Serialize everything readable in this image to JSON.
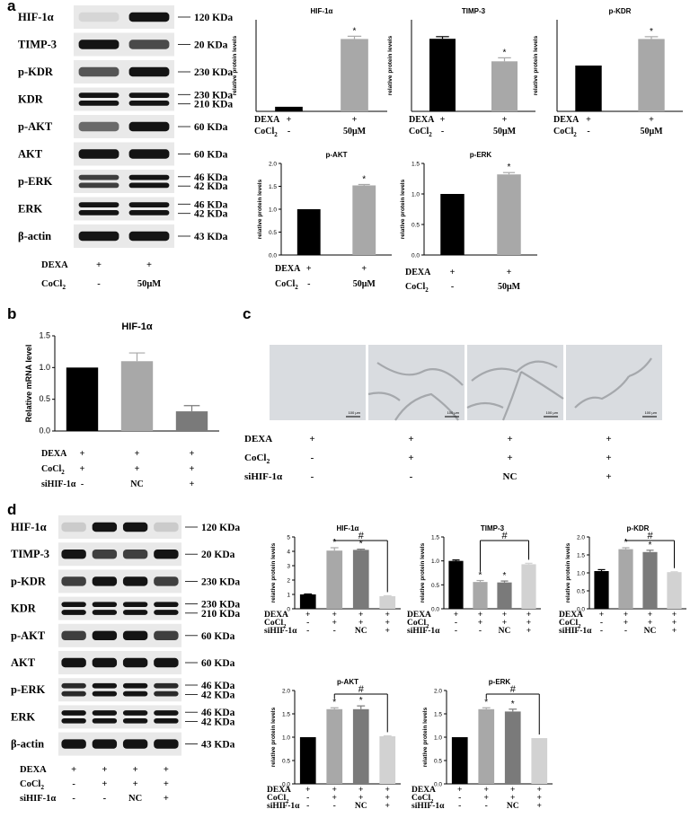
{
  "panel_labels": {
    "a": "a",
    "b": "b",
    "c": "c",
    "d": "d"
  },
  "colors": {
    "black": "#000000",
    "gray": "#a8a8a8",
    "dark_gray": "#7a7a7a",
    "light_gray": "#d2d2d2",
    "blot_bg": "#e9e9e9",
    "micro_bg": "#d9dce0"
  },
  "blot_a": {
    "rows": [
      {
        "label": "HIF-1α",
        "weights": [
          120
        ],
        "kda": [
          "120 KDa"
        ],
        "intensity": [
          0.1,
          1.0
        ]
      },
      {
        "label": "TIMP-3",
        "kda": [
          "20 KDa"
        ],
        "intensity": [
          1.0,
          0.75
        ]
      },
      {
        "label": "p-KDR",
        "kda": [
          "230 KDa"
        ],
        "intensity": [
          0.7,
          1.0
        ]
      },
      {
        "label": "KDR",
        "kda": [
          "230 KDa",
          "210 KDa"
        ],
        "intensity": [
          1.0,
          1.0
        ],
        "double": true
      },
      {
        "label": "p-AKT",
        "kda": [
          "60 KDa"
        ],
        "intensity": [
          0.6,
          1.0
        ]
      },
      {
        "label": "AKT",
        "kda": [
          "60 KDa"
        ],
        "intensity": [
          1.0,
          1.0
        ]
      },
      {
        "label": "p-ERK",
        "kda": [
          "46 KDa",
          "42 KDa"
        ],
        "intensity": [
          0.8,
          1.0
        ],
        "double": true
      },
      {
        "label": "ERK",
        "kda": [
          "46 KDa",
          "42 KDa"
        ],
        "intensity": [
          1.0,
          1.0
        ],
        "double": true
      },
      {
        "label": "β-actin",
        "kda": [
          "43 KDa"
        ],
        "intensity": [
          1.0,
          1.0
        ]
      }
    ],
    "conditions": [
      {
        "label": "DEXA",
        "values": [
          "+",
          "+"
        ]
      },
      {
        "label": "CoCl2",
        "values": [
          "-",
          "50μM"
        ]
      }
    ]
  },
  "blot_d": {
    "rows": [
      {
        "label": "HIF-1α",
        "kda": [
          "120 KDa"
        ],
        "intensity": [
          0.15,
          1.0,
          1.0,
          0.15
        ]
      },
      {
        "label": "TIMP-3",
        "kda": [
          "20 KDa"
        ],
        "intensity": [
          1.0,
          0.8,
          0.8,
          1.0
        ]
      },
      {
        "label": "p-KDR",
        "kda": [
          "230 KDa"
        ],
        "intensity": [
          0.8,
          1.0,
          1.0,
          0.8
        ]
      },
      {
        "label": "KDR",
        "kda": [
          "230 KDa",
          "210 KDa"
        ],
        "intensity": [
          1.0,
          1.0,
          1.0,
          1.0
        ],
        "double": true
      },
      {
        "label": "p-AKT",
        "kda": [
          "60 KDa"
        ],
        "intensity": [
          0.8,
          1.0,
          1.0,
          0.8
        ]
      },
      {
        "label": "AKT",
        "kda": [
          "60 KDa"
        ],
        "intensity": [
          1.0,
          1.0,
          1.0,
          1.0
        ]
      },
      {
        "label": "p-ERK",
        "kda": [
          "46 KDa",
          "42 KDa"
        ],
        "intensity": [
          0.9,
          1.0,
          1.0,
          0.9
        ],
        "double": true
      },
      {
        "label": "ERK",
        "kda": [
          "46 KDa",
          "42 KDa"
        ],
        "intensity": [
          1.0,
          1.0,
          1.0,
          1.0
        ],
        "double": true
      },
      {
        "label": "β-actin",
        "kda": [
          "43 KDa"
        ],
        "intensity": [
          1.0,
          1.0,
          1.0,
          1.0
        ]
      }
    ],
    "conditions": [
      {
        "label": "DEXA",
        "values": [
          "+",
          "+",
          "+",
          "+"
        ]
      },
      {
        "label": "CoCl2",
        "values": [
          "-",
          "+",
          "+",
          "+"
        ]
      },
      {
        "label": "siHIF-1α",
        "values": [
          "-",
          "-",
          "NC",
          "+"
        ]
      }
    ]
  },
  "micrographs_c": {
    "scale_bars": [
      "100 μm",
      "100 μm",
      "100 μm",
      "100 μm"
    ],
    "conditions": [
      {
        "label": "DEXA",
        "values": [
          "+",
          "+",
          "+",
          "+"
        ]
      },
      {
        "label": "CoCl2",
        "values": [
          "-",
          "+",
          "+",
          "+"
        ]
      },
      {
        "label": "siHIF-1α",
        "values": [
          "-",
          "-",
          "NC",
          "+"
        ]
      }
    ]
  },
  "chart_data": [
    {
      "id": "a-hif",
      "type": "bar",
      "title": "HIF-1α",
      "ylabel": "relative protein levels",
      "categories": [
        "1",
        "2"
      ],
      "values": [
        1.0,
        15.8
      ],
      "errors": [
        0,
        0.6
      ],
      "ylim": [
        0,
        20
      ],
      "marks": [
        "",
        "*"
      ],
      "bar_colors": [
        "#000000",
        "#a8a8a8"
      ],
      "conditions": [
        {
          "label": "DEXA",
          "values": [
            "+",
            "+"
          ]
        },
        {
          "label": "CoCl2",
          "values": [
            "-",
            "50μM"
          ]
        }
      ]
    },
    {
      "id": "a-timp",
      "type": "bar",
      "title": "TIMP-3",
      "ylabel": "relative protein levels",
      "categories": [
        "1",
        "2"
      ],
      "values": [
        1.03,
        0.71
      ],
      "errors": [
        0.03,
        0.05
      ],
      "ylim": [
        0,
        1.3
      ],
      "marks": [
        "",
        "*"
      ],
      "bar_colors": [
        "#000000",
        "#a8a8a8"
      ],
      "conditions": [
        {
          "label": "DEXA",
          "values": [
            "+",
            "+"
          ]
        },
        {
          "label": "CoCl2",
          "values": [
            "-",
            "50μM"
          ]
        }
      ]
    },
    {
      "id": "a-pkdr",
      "type": "bar",
      "title": "p-KDR",
      "ylabel": "relative protein levels",
      "categories": [
        "1",
        "2"
      ],
      "values": [
        1.0,
        1.58
      ],
      "errors": [
        0,
        0.05
      ],
      "ylim": [
        0,
        2.0
      ],
      "marks": [
        "",
        "*"
      ],
      "bar_colors": [
        "#000000",
        "#a8a8a8"
      ],
      "conditions": [
        {
          "label": "DEXA",
          "values": [
            "+",
            "+"
          ]
        },
        {
          "label": "CoCl2",
          "values": [
            "-",
            "50μM"
          ]
        }
      ]
    },
    {
      "id": "a-pakt",
      "type": "bar",
      "title": "p-AKT",
      "ylabel": "relative protein levels",
      "categories": [
        "1",
        "2"
      ],
      "values": [
        1.0,
        1.52
      ],
      "errors": [
        0,
        0.02
      ],
      "ylim": [
        0,
        2.0
      ],
      "yticks": [
        0.0,
        0.5,
        1.0,
        1.5,
        2.0
      ],
      "marks": [
        "",
        "*"
      ],
      "bar_colors": [
        "#000000",
        "#a8a8a8"
      ],
      "conditions": [
        {
          "label": "DEXA",
          "values": [
            "+",
            "+"
          ]
        },
        {
          "label": "CoCl2",
          "values": [
            "-",
            "50μM"
          ]
        }
      ]
    },
    {
      "id": "a-perk",
      "type": "bar",
      "title": "p-ERK",
      "ylabel": "relative protein levels",
      "categories": [
        "1",
        "2"
      ],
      "values": [
        1.0,
        1.32
      ],
      "errors": [
        0,
        0.03
      ],
      "ylim": [
        0,
        1.5
      ],
      "yticks": [
        0.0,
        0.5,
        1.0,
        1.5
      ],
      "marks": [
        "",
        "*"
      ],
      "bar_colors": [
        "#000000",
        "#a8a8a8"
      ],
      "conditions": [
        {
          "label": "DEXA",
          "values": [
            "+",
            "+"
          ]
        },
        {
          "label": "CoCl2",
          "values": [
            "-",
            "50μM"
          ]
        }
      ]
    },
    {
      "id": "b-hif",
      "type": "bar",
      "title": "HIF-1α",
      "ylabel": "Relative mRNA level",
      "categories": [
        "1",
        "2",
        "3"
      ],
      "values": [
        1.0,
        1.1,
        0.31
      ],
      "errors": [
        0,
        0.13,
        0.09
      ],
      "ylim": [
        0,
        1.5
      ],
      "yticks": [
        0.0,
        0.5,
        1.0,
        1.5
      ],
      "marks": [
        "",
        "",
        ""
      ],
      "bar_colors": [
        "#000000",
        "#a8a8a8",
        "#7a7a7a"
      ],
      "conditions": [
        {
          "label": "DEXA",
          "values": [
            "+",
            "+",
            "+"
          ]
        },
        {
          "label": "CoCl2",
          "values": [
            "+",
            "+",
            "+"
          ]
        },
        {
          "label": "siHIF-1α",
          "values": [
            "-",
            "NC",
            "+"
          ]
        }
      ]
    },
    {
      "id": "d-hif",
      "type": "bar",
      "title": "HIF-1α",
      "ylabel": "relative protein levels",
      "categories": [
        "1",
        "2",
        "3",
        "4"
      ],
      "values": [
        1.0,
        4.05,
        4.1,
        0.88
      ],
      "errors": [
        0.03,
        0.2,
        0.05,
        0.03
      ],
      "ylim": [
        0,
        5
      ],
      "yticks": [
        0,
        1,
        2,
        3,
        4,
        5
      ],
      "marks": [
        "",
        "*",
        "*",
        ""
      ],
      "hash": "#",
      "bar_colors": [
        "#000000",
        "#a8a8a8",
        "#7a7a7a",
        "#d2d2d2"
      ],
      "conditions": [
        {
          "label": "DEXA",
          "values": [
            "+",
            "+",
            "+",
            "+"
          ]
        },
        {
          "label": "CoCl2",
          "values": [
            "-",
            "+",
            "+",
            "+"
          ]
        },
        {
          "label": "siHIF-1α",
          "values": [
            "-",
            "-",
            "NC",
            "+"
          ]
        }
      ]
    },
    {
      "id": "d-timp",
      "type": "bar",
      "title": "TIMP-3",
      "ylabel": "relative protein levels",
      "categories": [
        "1",
        "2",
        "3",
        "4"
      ],
      "values": [
        1.0,
        0.56,
        0.55,
        0.93
      ],
      "errors": [
        0.02,
        0.03,
        0.03,
        0.02
      ],
      "ylim": [
        0,
        1.5
      ],
      "yticks": [
        0.0,
        0.5,
        1.0,
        1.5
      ],
      "marks": [
        "",
        "*",
        "*",
        ""
      ],
      "hash": "#",
      "bar_colors": [
        "#000000",
        "#a8a8a8",
        "#7a7a7a",
        "#d2d2d2"
      ],
      "conditions": [
        {
          "label": "DEXA",
          "values": [
            "+",
            "+",
            "+",
            "+"
          ]
        },
        {
          "label": "CoCl2",
          "values": [
            "-",
            "+",
            "+",
            "+"
          ]
        },
        {
          "label": "siHIF-1α",
          "values": [
            "-",
            "-",
            "NC",
            "+"
          ]
        }
      ]
    },
    {
      "id": "d-pkdr",
      "type": "bar",
      "title": "p-KDR",
      "ylabel": "relative protein levels",
      "categories": [
        "1",
        "2",
        "3",
        "4"
      ],
      "values": [
        1.05,
        1.66,
        1.58,
        1.02
      ],
      "errors": [
        0.04,
        0.04,
        0.05,
        0.01
      ],
      "ylim": [
        0,
        2.0
      ],
      "yticks": [
        0.0,
        0.5,
        1.0,
        1.5,
        2.0
      ],
      "marks": [
        "",
        "*",
        "*",
        ""
      ],
      "hash": "#",
      "bar_colors": [
        "#000000",
        "#a8a8a8",
        "#7a7a7a",
        "#d2d2d2"
      ],
      "conditions": [
        {
          "label": "DEXA",
          "values": [
            "+",
            "+",
            "+",
            "+"
          ]
        },
        {
          "label": "CoCl2",
          "values": [
            "-",
            "+",
            "+",
            "+"
          ]
        },
        {
          "label": "siHIF-1α",
          "values": [
            "-",
            "-",
            "NC",
            "+"
          ]
        }
      ]
    },
    {
      "id": "d-pakt",
      "type": "bar",
      "title": "p-AKT",
      "ylabel": "relative protein levels",
      "categories": [
        "1",
        "2",
        "3",
        "4"
      ],
      "values": [
        1.0,
        1.6,
        1.6,
        1.02
      ],
      "errors": [
        0,
        0.03,
        0.07,
        0.01
      ],
      "ylim": [
        0,
        2.0
      ],
      "yticks": [
        0.0,
        0.5,
        1.0,
        1.5,
        2.0
      ],
      "marks": [
        "",
        "*",
        "*",
        ""
      ],
      "hash": "#",
      "bar_colors": [
        "#000000",
        "#a8a8a8",
        "#7a7a7a",
        "#d2d2d2"
      ],
      "conditions": [
        {
          "label": "DEXA",
          "values": [
            "+",
            "+",
            "+",
            "+"
          ]
        },
        {
          "label": "CoCl2",
          "values": [
            "-",
            "+",
            "+",
            "+"
          ]
        },
        {
          "label": "siHIF-1α",
          "values": [
            "-",
            "-",
            "NC",
            "+"
          ]
        }
      ]
    },
    {
      "id": "d-perk",
      "type": "bar",
      "title": "p-ERK",
      "ylabel": "relative protein levels",
      "categories": [
        "1",
        "2",
        "3",
        "4"
      ],
      "values": [
        1.0,
        1.6,
        1.55,
        0.98
      ],
      "errors": [
        0,
        0.03,
        0.05,
        0
      ],
      "ylim": [
        0,
        2.0
      ],
      "yticks": [
        0.0,
        0.5,
        1.0,
        1.5,
        2.0
      ],
      "marks": [
        "",
        "*",
        "*",
        ""
      ],
      "hash": "#",
      "bar_colors": [
        "#000000",
        "#a8a8a8",
        "#7a7a7a",
        "#d2d2d2"
      ],
      "conditions": [
        {
          "label": "DEXA",
          "values": [
            "+",
            "+",
            "+",
            "+"
          ]
        },
        {
          "label": "CoCl2",
          "values": [
            "-",
            "+",
            "+",
            "+"
          ]
        },
        {
          "label": "siHIF-1α",
          "values": [
            "-",
            "-",
            "NC",
            "+"
          ]
        }
      ]
    }
  ]
}
